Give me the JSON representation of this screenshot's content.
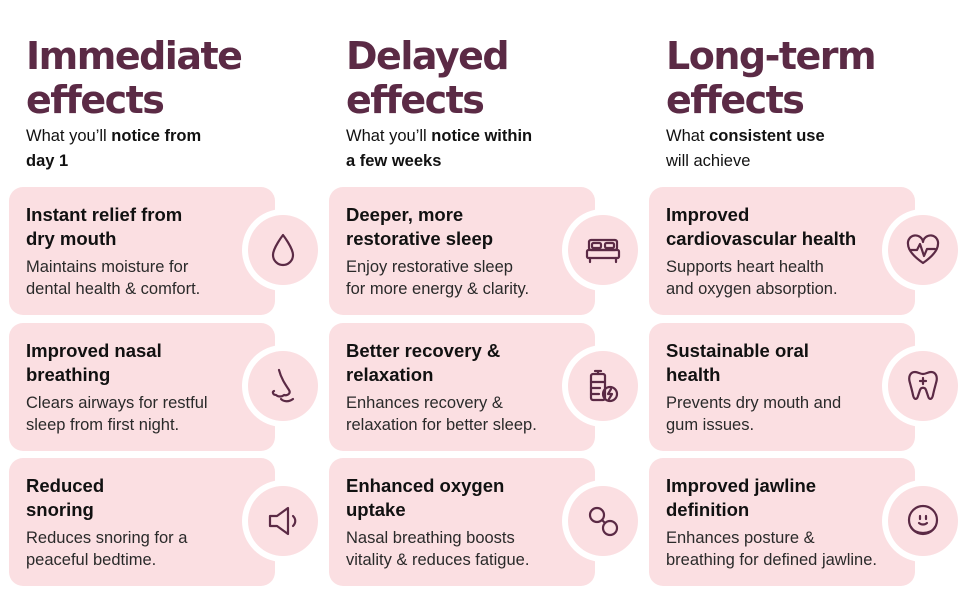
{
  "columns": [
    {
      "title_line1": "Immediate",
      "title_line2": "effects",
      "subtitle": {
        "line1_plain": "What you’ll ",
        "line1_bold": "notice from",
        "line2_bold": "day 1",
        "line2_plain": ""
      },
      "cards": [
        {
          "title": [
            "Instant relief from",
            "dry mouth"
          ],
          "desc": [
            "Maintains moisture for",
            "dental health & comfort."
          ],
          "icon": "water-drop-icon"
        },
        {
          "title": [
            "Improved nasal",
            "breathing"
          ],
          "desc": [
            "Clears airways for restful",
            "sleep from first night."
          ],
          "icon": "nose-icon"
        },
        {
          "title": [
            "Reduced",
            "snoring"
          ],
          "desc": [
            "Reduces snoring for a",
            "peaceful bedtime."
          ],
          "icon": "speaker-icon"
        }
      ]
    },
    {
      "title_line1": "Delayed",
      "title_line2": "effects",
      "subtitle": {
        "line1_plain": "What you’ll ",
        "line1_bold": "notice within",
        "line2_bold": "a few weeks",
        "line2_plain": ""
      },
      "cards": [
        {
          "title": [
            "Deeper, more",
            "restorative sleep"
          ],
          "desc": [
            "Enjoy restorative sleep",
            "for more energy & clarity."
          ],
          "icon": "bed-icon"
        },
        {
          "title": [
            "Better recovery &",
            "relaxation"
          ],
          "desc": [
            "Enhances recovery &",
            "relaxation for better sleep."
          ],
          "icon": "battery-charging-icon"
        },
        {
          "title": [
            "Enhanced oxygen",
            "uptake"
          ],
          "desc": [
            "Nasal breathing boosts",
            "vitality & reduces fatigue."
          ],
          "icon": "oxygen-molecule-icon"
        }
      ]
    },
    {
      "title_line1": "Long-term",
      "title_line2": "effects",
      "subtitle": {
        "line1_plain": "What ",
        "line1_bold": "consistent use",
        "line2_bold": "",
        "line2_plain": "will achieve"
      },
      "cards": [
        {
          "title": [
            "Improved",
            "cardiovascular health"
          ],
          "desc": [
            "Supports heart health",
            "and oxygen absorption."
          ],
          "icon": "heart-pulse-icon"
        },
        {
          "title": [
            "Sustainable oral",
            "health"
          ],
          "desc": [
            "Prevents dry mouth and",
            "gum issues."
          ],
          "icon": "tooth-icon"
        },
        {
          "title": [
            "Improved jawline",
            "definition"
          ],
          "desc": [
            "Enhances posture &",
            "breathing for defined jawline."
          ],
          "icon": "face-jawline-icon"
        }
      ]
    }
  ],
  "colors": {
    "heading": "#5b2a45",
    "card_bg": "#fbdfe2",
    "icon_stroke": "#5b2a45"
  }
}
